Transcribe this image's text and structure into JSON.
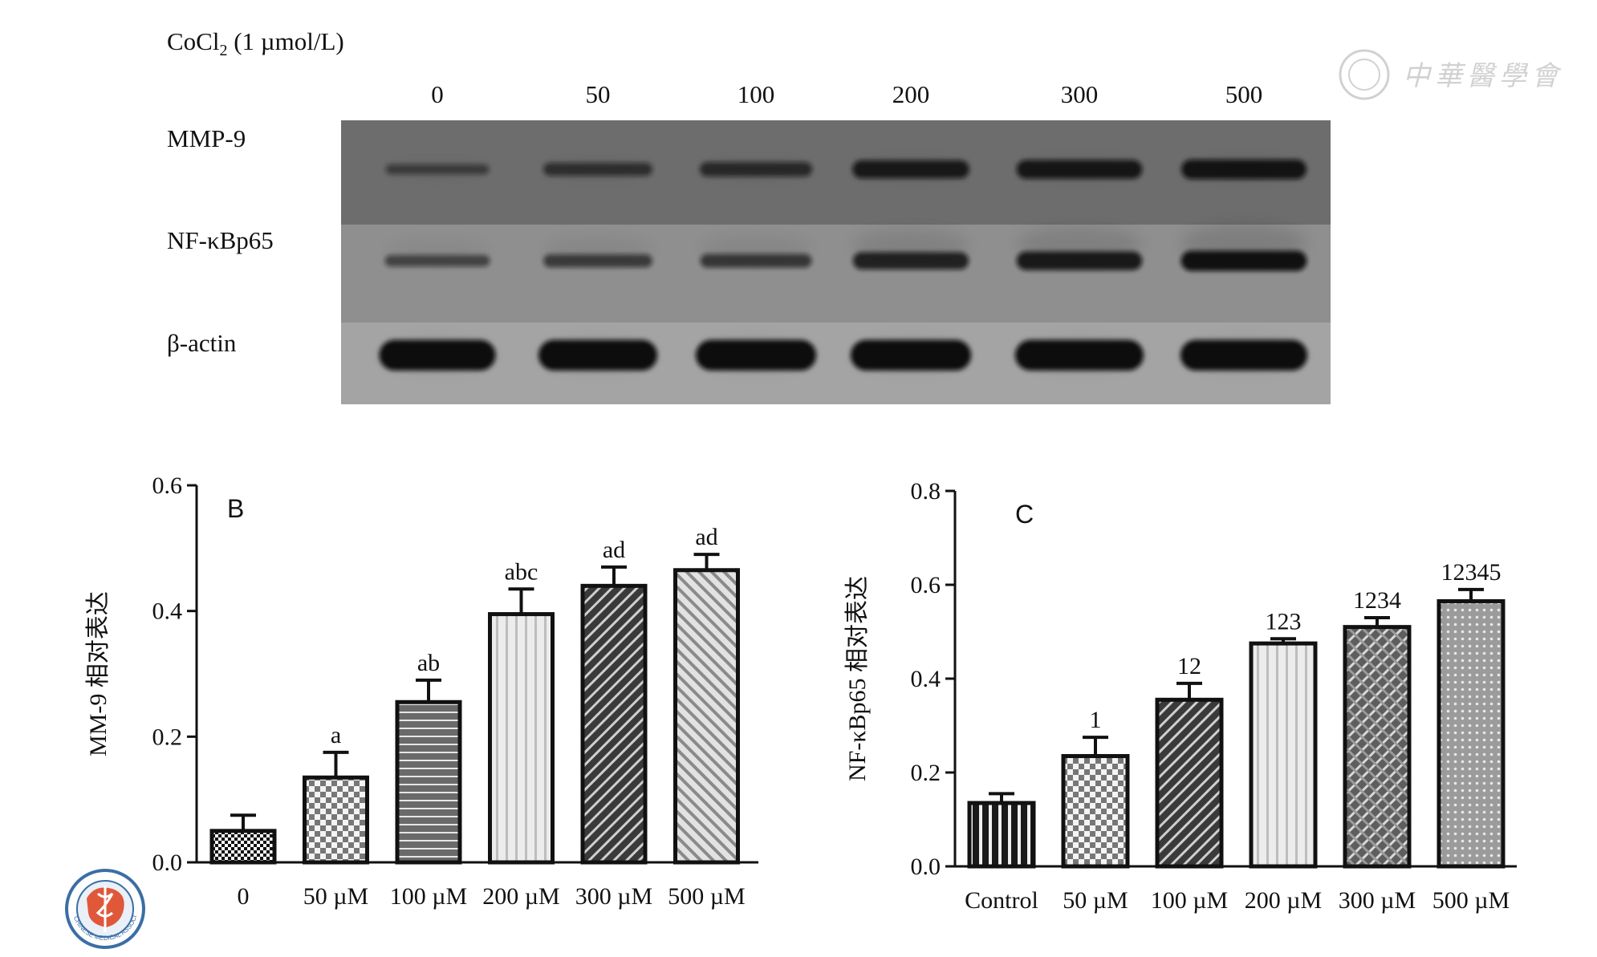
{
  "blot": {
    "treatment_label": "CoCl",
    "treatment_sub": "2",
    "treatment_unit": " (1 µmol/L)",
    "lanes": [
      "0",
      "50",
      "100",
      "200",
      "300",
      "500"
    ],
    "rows": [
      {
        "label": "MMP-9",
        "intensity": [
          0.25,
          0.45,
          0.55,
          0.8,
          0.85,
          0.9
        ],
        "bg": "#6d6d6d"
      },
      {
        "label": "NF-κBp65",
        "intensity": [
          0.35,
          0.45,
          0.5,
          0.75,
          0.85,
          0.95
        ],
        "bg": "#8f8f8f"
      },
      {
        "label": "β-actin",
        "intensity": [
          1,
          1,
          1,
          1,
          1,
          1
        ],
        "bg": "#a4a4a4"
      }
    ]
  },
  "watermark": {
    "text": "中華醫學會",
    "emblem_text": "CHINESE MEDICAL ASSOCIATION"
  },
  "chart_data": [
    {
      "type": "bar",
      "panel": "B",
      "ylabel": "MM-9 相对表达",
      "xlabel": "",
      "categories": [
        "0",
        "50 µM",
        "100 µM",
        "200 µM",
        "300 µM",
        "500 µM"
      ],
      "values": [
        0.05,
        0.135,
        0.255,
        0.395,
        0.44,
        0.465
      ],
      "errors": [
        0.025,
        0.04,
        0.035,
        0.04,
        0.03,
        0.025
      ],
      "annotations": [
        "",
        "a",
        "ab",
        "abc",
        "ad",
        "ad"
      ],
      "patterns": [
        "checker-fine",
        "checker",
        "hlines",
        "vlines",
        "diag-dark",
        "diag-light"
      ],
      "ylim": [
        0,
        0.6
      ],
      "yticks": [
        "0.0",
        "0.2",
        "0.4",
        "0.6"
      ],
      "grid": false
    },
    {
      "type": "bar",
      "panel": "C",
      "ylabel": "NF-κBp65 相对表达",
      "xlabel": "",
      "categories": [
        "Control",
        "50 µM",
        "100 µM",
        "200 µM",
        "300 µM",
        "500 µM"
      ],
      "values": [
        0.135,
        0.235,
        0.355,
        0.475,
        0.51,
        0.565
      ],
      "errors": [
        0.02,
        0.04,
        0.035,
        0.01,
        0.02,
        0.025
      ],
      "annotations": [
        "",
        "1",
        "12",
        "123",
        "1234",
        "12345"
      ],
      "patterns": [
        "vbars-dark",
        "checker",
        "diag-dark",
        "vlines",
        "crosshatch",
        "dots"
      ],
      "ylim": [
        0,
        0.8
      ],
      "yticks": [
        "0.0",
        "0.2",
        "0.4",
        "0.6",
        "0.8"
      ],
      "grid": false
    }
  ]
}
